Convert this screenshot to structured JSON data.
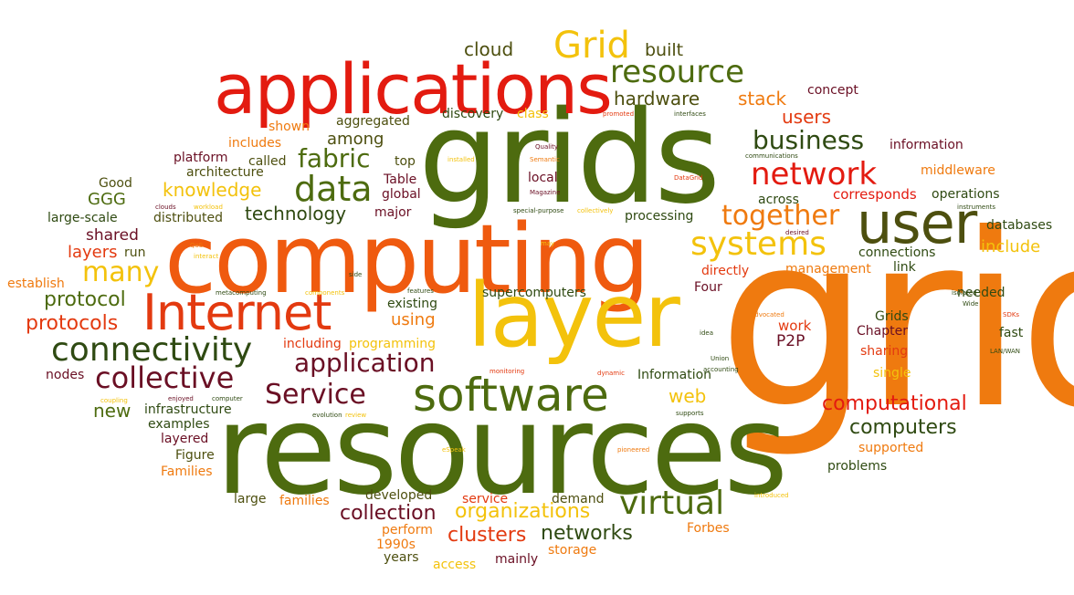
{
  "colors": {
    "red": "#e31b10",
    "orange": "#ef7a0f",
    "yellow": "#f3c20c",
    "olive": "#4d6b0f",
    "maroon": "#6a0f24",
    "darkgreen": "#2f4a12"
  },
  "words": {
    "grid": "grid",
    "resources": "resources",
    "grids": "grids",
    "computing": "computing",
    "layer": "layer",
    "applications": "applications",
    "software": "software",
    "user": "user",
    "internet": "Internet",
    "connectivity": "connectivity",
    "resource": "resource",
    "systems": "systems",
    "network": "network",
    "data": "data",
    "collective": "collective",
    "virtual": "virtual",
    "service_cap": "Service",
    "application": "application",
    "grid_cap": "Grid",
    "together": "together",
    "business": "business",
    "many": "many",
    "fabric": "fabric",
    "computational": "computational",
    "computers": "computers",
    "protocols": "protocols",
    "protocol": "protocol",
    "organizations": "organizations",
    "clusters": "clusters",
    "networks": "networks",
    "hardware": "hardware",
    "cloud": "cloud",
    "built": "built",
    "stack": "stack",
    "users": "users",
    "concept": "concept",
    "information": "information",
    "middleware": "middleware",
    "operations": "operations",
    "corresponds": "corresponds",
    "across": "across",
    "databases": "databases",
    "include": "include",
    "connections": "connections",
    "link": "link",
    "management": "management",
    "directly": "directly",
    "needed": "needed",
    "four": "Four",
    "work": "work",
    "p2p": "P2P",
    "grids_cap": "Grids",
    "chapter": "Chapter",
    "fast": "fast",
    "sharing": "sharing",
    "single": "single",
    "information_cap": "Information",
    "web": "web",
    "supported": "supported",
    "problems": "problems",
    "forbes": "Forbes",
    "demand": "demand",
    "service": "service",
    "storage": "storage",
    "mainly": "mainly",
    "access": "access",
    "collection": "collection",
    "developed": "developed",
    "perform": "perform",
    "years": "years",
    "1990s": "1990s",
    "families": "families",
    "large": "large",
    "families_cap": "Families",
    "figure": "Figure",
    "layered": "layered",
    "examples": "examples",
    "infrastructure": "infrastructure",
    "new": "new",
    "nodes": "nodes",
    "layers": "layers",
    "run": "run",
    "shared": "shared",
    "establish": "establish",
    "large_scale": "large-scale",
    "ggg": "GGG",
    "good": "Good",
    "distributed": "distributed",
    "knowledge": "knowledge",
    "technology": "technology",
    "architecture": "architecture",
    "platform": "platform",
    "called": "called",
    "includes": "includes",
    "shown": "shown",
    "among": "among",
    "aggregated": "aggregated",
    "top": "top",
    "table": "Table",
    "global": "global",
    "major": "major",
    "local": "local",
    "discovery": "discovery",
    "class": "class",
    "processing": "processing",
    "existing": "existing",
    "supercomputers": "supercomputers",
    "using": "using",
    "including": "including",
    "programming": "programming",
    "magazine": "Magazine",
    "quality": "Quality",
    "semantic": "Semantic",
    "installed": "installed",
    "promoted": "promoted",
    "interfaces": "interfaces",
    "communications": "communications",
    "datagrid": "DataGrid",
    "collectively": "collectively",
    "special_purpose": "special-purpose",
    "instruments": "instruments",
    "desired": "desired",
    "may": "may",
    "clouds": "clouds",
    "workload": "workload",
    "qos": "QoS",
    "interact": "interact",
    "metacomputing": "metacomputing",
    "components": "components",
    "side": "side",
    "features": "features",
    "advocated": "advocated",
    "idea": "idea",
    "isolated": "isolated",
    "wide": "Wide",
    "sdks": "SDKs",
    "lan_wan": "LAN/WAN",
    "monitoring": "monitoring",
    "dynamic": "dynamic",
    "union": "Union",
    "accounting": "accounting",
    "coupling": "coupling",
    "enjoyed": "enjoyed",
    "computer": "computer",
    "evolution": "evolution",
    "review": "review",
    "supports": "supports",
    "espeak": "eSpeak",
    "pioneered": "pioneered",
    "introduced": "introduced"
  }
}
